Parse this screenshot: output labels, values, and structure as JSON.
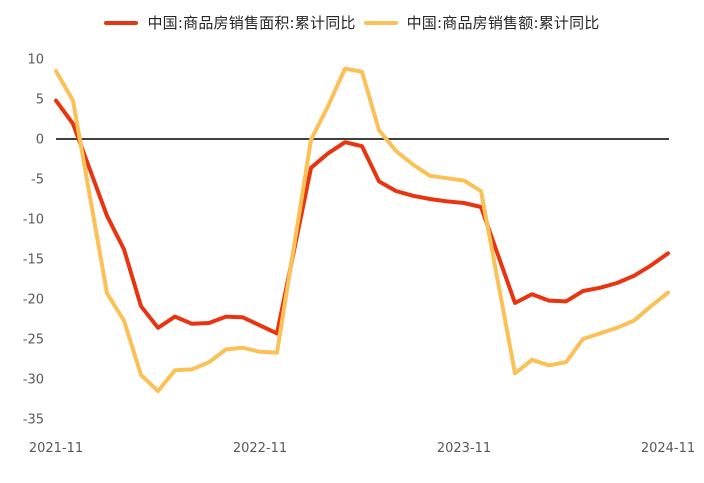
{
  "chart_data": {
    "type": "line",
    "title": "",
    "xlabel": "",
    "ylabel": "",
    "x": [
      "2021-11",
      "2021-12",
      "2022-02",
      "2022-03",
      "2022-04",
      "2022-05",
      "2022-06",
      "2022-07",
      "2022-08",
      "2022-09",
      "2022-10",
      "2022-11",
      "2022-12",
      "2023-02",
      "2023-03",
      "2023-04",
      "2023-05",
      "2023-06",
      "2023-07",
      "2023-08",
      "2023-09",
      "2023-10",
      "2023-11",
      "2023-12",
      "2024-02",
      "2024-03",
      "2024-04",
      "2024-05",
      "2024-06",
      "2024-07",
      "2024-08",
      "2024-09",
      "2024-10",
      "2024-11"
    ],
    "series": [
      {
        "name": "中国:商品房销售面积:累计同比",
        "color": "#e8350f",
        "values": [
          4.8,
          1.9,
          -9.6,
          -13.8,
          -20.9,
          -23.6,
          -22.2,
          -23.1,
          -23.0,
          -22.2,
          -22.3,
          -23.3,
          -24.3,
          -3.6,
          -1.8,
          -0.4,
          -0.9,
          -5.3,
          -6.5,
          -7.1,
          -7.5,
          -7.8,
          -8.0,
          -8.5,
          -20.5,
          -19.4,
          -20.2,
          -20.3,
          -19.0,
          -18.6,
          -18.0,
          -17.1,
          -15.8,
          -14.3
        ]
      },
      {
        "name": "中国:商品房销售额:累计同比",
        "color": "#fbc157",
        "values": [
          8.5,
          4.8,
          -19.3,
          -22.7,
          -29.5,
          -31.5,
          -28.9,
          -28.8,
          -27.9,
          -26.3,
          -26.1,
          -26.6,
          -26.7,
          -0.1,
          4.1,
          8.8,
          8.4,
          1.1,
          -1.5,
          -3.2,
          -4.6,
          -4.9,
          -5.2,
          -6.5,
          -29.3,
          -27.6,
          -28.3,
          -27.9,
          -25.0,
          -24.3,
          -23.6,
          -22.7,
          -20.9,
          -19.2
        ]
      }
    ],
    "ylim": [
      -35,
      10
    ],
    "yticks": [
      10,
      5,
      0,
      -5,
      -10,
      -15,
      -20,
      -25,
      -30,
      -35
    ],
    "xticks": [
      "2021-11",
      "2022-11",
      "2023-11",
      "2024-11"
    ],
    "grid": false,
    "zero_line": true,
    "legend_position": "top",
    "axis_label_color": "#595959",
    "zero_line_color": "#404040"
  }
}
